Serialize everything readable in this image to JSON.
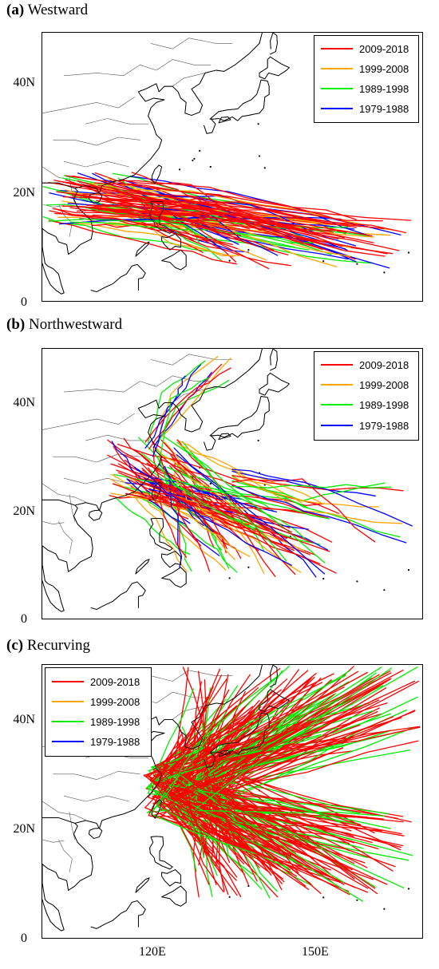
{
  "colors": {
    "p2009": "#ff0000",
    "p1999": "#ffa500",
    "p1989": "#00ee00",
    "p1979": "#0000ff",
    "coast": "#000000",
    "border": "#555555"
  },
  "legend": [
    {
      "label": "2009-2018",
      "color": "#ff0000"
    },
    {
      "label": "1999-2008",
      "color": "#ffa500"
    },
    {
      "label": "1989-1998",
      "color": "#00ee00"
    },
    {
      "label": "1979-1988",
      "color": "#0000ff"
    }
  ],
  "axes": {
    "y_ticks": [
      "40N",
      "20N",
      "0"
    ],
    "x_ticks": [
      "120E",
      "150E"
    ],
    "lon_range": [
      100,
      170
    ],
    "lat_range": [
      0,
      50
    ]
  },
  "panels": [
    {
      "id": "a",
      "title_tag": "(a)",
      "title_text": "Westward",
      "legend_position": "top-right"
    },
    {
      "id": "b",
      "title_tag": "(b)",
      "title_text": "Northwestward",
      "legend_position": "top-right"
    },
    {
      "id": "c",
      "title_tag": "(c)",
      "title_text": "Recurving",
      "legend_position": "top-left"
    }
  ]
}
